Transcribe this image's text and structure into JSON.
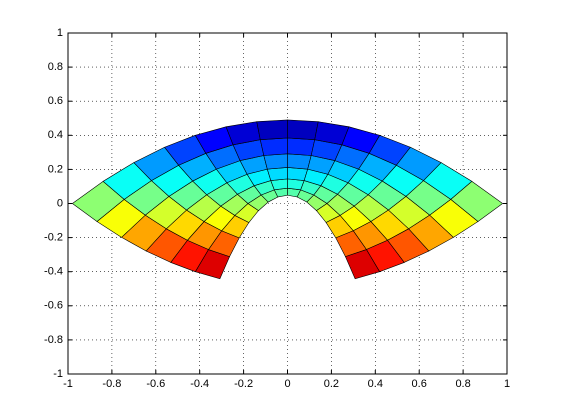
{
  "chart_data": {
    "type": "surface",
    "xlim": [
      -1,
      1
    ],
    "ylim": [
      -1,
      1
    ],
    "xticks": [
      -1,
      -0.8,
      -0.6,
      -0.4,
      -0.2,
      0,
      0.2,
      0.4,
      0.6,
      0.8,
      1
    ],
    "yticks": [
      -1,
      -0.8,
      -0.6,
      -0.4,
      -0.2,
      0,
      0.2,
      0.4,
      0.6,
      0.8,
      1
    ],
    "grid": true,
    "colormap": "jet",
    "reverse_colormap": true,
    "x": [
      [
        -0.308,
        -0.264,
        -0.22,
        -0.176,
        -0.132,
        -0.088,
        -0.044,
        0,
        0.044,
        0.088,
        0.132,
        0.176,
        0.22,
        0.264,
        0.308
      ],
      [
        -0.42,
        -0.36,
        -0.3,
        -0.24,
        -0.18,
        -0.12,
        -0.06,
        0,
        0.06,
        0.12,
        0.18,
        0.24,
        0.3,
        0.36,
        0.42
      ],
      [
        -0.532,
        -0.456,
        -0.38,
        -0.304,
        -0.228,
        -0.152,
        -0.076,
        0,
        0.076,
        0.152,
        0.228,
        0.304,
        0.38,
        0.456,
        0.532
      ],
      [
        -0.644,
        -0.552,
        -0.46,
        -0.368,
        -0.276,
        -0.184,
        -0.092,
        0,
        0.092,
        0.184,
        0.276,
        0.368,
        0.46,
        0.552,
        0.644
      ],
      [
        -0.756,
        -0.648,
        -0.54,
        -0.432,
        -0.324,
        -0.216,
        -0.108,
        0,
        0.108,
        0.216,
        0.324,
        0.432,
        0.54,
        0.648,
        0.756
      ],
      [
        -0.868,
        -0.744,
        -0.62,
        -0.496,
        -0.372,
        -0.248,
        -0.124,
        0,
        0.124,
        0.248,
        0.372,
        0.496,
        0.62,
        0.744,
        0.868
      ],
      [
        -0.98,
        -0.84,
        -0.7,
        -0.56,
        -0.42,
        -0.28,
        -0.14,
        0,
        0.14,
        0.28,
        0.42,
        0.56,
        0.7,
        0.84,
        0.98
      ]
    ],
    "y": [
      [
        -0.4416,
        -0.3116,
        -0.2016,
        -0.1116,
        -0.0416,
        0.0084,
        0.0384,
        0.0484,
        0.0384,
        0.0084,
        -0.0416,
        -0.1116,
        -0.2016,
        -0.3116,
        -0.4416
      ],
      [
        -0.4,
        -0.27,
        -0.16,
        -0.07,
        0,
        0.05,
        0.08,
        0.09,
        0.08,
        0.05,
        0,
        -0.07,
        -0.16,
        -0.27,
        -0.4
      ],
      [
        -0.3456,
        -0.2156,
        -0.1056,
        -0.0156,
        0.0544,
        0.1044,
        0.1344,
        0.1444,
        0.1344,
        0.1044,
        0.0544,
        -0.0156,
        -0.1056,
        -0.2156,
        -0.3456
      ],
      [
        -0.2784,
        -0.1484,
        -0.0384,
        0.0516,
        0.1216,
        0.1716,
        0.2016,
        0.2116,
        0.2016,
        0.1716,
        0.1216,
        0.0516,
        -0.0384,
        -0.1484,
        -0.2784
      ],
      [
        -0.1984,
        -0.0684,
        0.0416,
        0.1316,
        0.2016,
        0.2516,
        0.2816,
        0.2916,
        0.2816,
        0.2516,
        0.2016,
        0.1316,
        0.0416,
        -0.0684,
        -0.1984
      ],
      [
        -0.1056,
        0.0244,
        0.1344,
        0.2244,
        0.2944,
        0.3444,
        0.3744,
        0.3844,
        0.3744,
        0.3444,
        0.2944,
        0.2244,
        0.1344,
        0.0244,
        -0.1056
      ],
      [
        0,
        0.13,
        0.24,
        0.33,
        0.4,
        0.45,
        0.48,
        0.49,
        0.48,
        0.45,
        0.4,
        0.33,
        0.24,
        0.13,
        0
      ]
    ]
  }
}
